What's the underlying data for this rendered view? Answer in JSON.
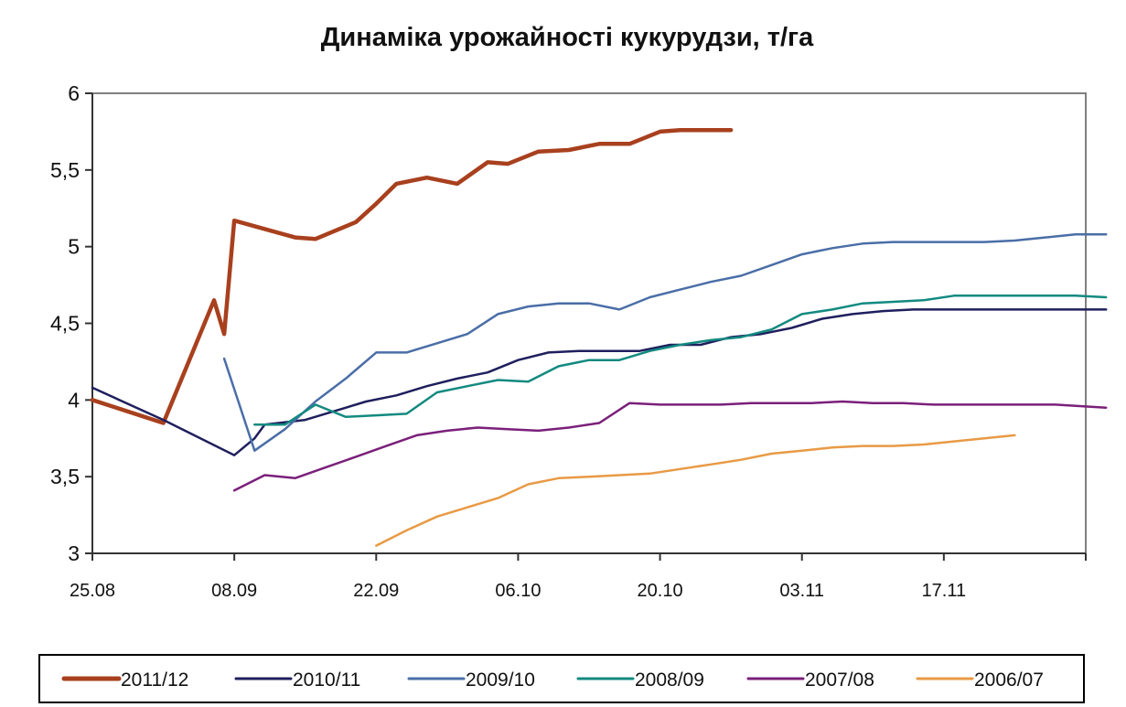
{
  "chart_data": {
    "type": "line",
    "title": "Динаміка урожайності кукурудзи, т/га",
    "xlabel": "",
    "ylabel": "",
    "x_ticks": [
      "25.08",
      "08.09",
      "22.09",
      "06.10",
      "20.10",
      "03.11",
      "17.11"
    ],
    "x_tick_days": [
      0,
      14,
      28,
      42,
      56,
      70,
      84
    ],
    "x_range_days": [
      0,
      98
    ],
    "ylim": [
      3,
      6
    ],
    "y_ticks": [
      "3",
      "3,5",
      "4",
      "4,5",
      "5",
      "5,5",
      "6"
    ],
    "y_tick_values": [
      3,
      3.5,
      4,
      4.5,
      5,
      5.5,
      6
    ],
    "grid": false,
    "legend_position": "bottom",
    "series": [
      {
        "name": "2011/12",
        "color": "#a8401e",
        "width": 4.5,
        "x": [
          "25.08",
          "01.09",
          "06.09",
          "07.09",
          "08.09",
          "14.09",
          "16.09",
          "20.09",
          "22.09",
          "24.09",
          "27.09",
          "30.09",
          "03.10",
          "05.10",
          "08.10",
          "11.10",
          "14.10",
          "17.10",
          "20.10",
          "22.10",
          "24.10",
          "27.10"
        ],
        "y": [
          4.0,
          3.85,
          4.65,
          4.43,
          5.17,
          5.06,
          5.05,
          5.16,
          5.28,
          5.41,
          5.45,
          5.41,
          5.55,
          5.54,
          5.62,
          5.63,
          5.67,
          5.67,
          5.75,
          5.76,
          5.76,
          5.76
        ]
      },
      {
        "name": "2010/11",
        "color": "#1f1f5e",
        "width": 2.5,
        "x": [
          "25.08",
          "01.09",
          "08.09",
          "10.09",
          "11.09",
          "15.09",
          "18.09",
          "21.09",
          "24.09",
          "27.09",
          "30.09",
          "03.10",
          "06.10",
          "09.10",
          "12.10",
          "15.10",
          "18.10",
          "21.10",
          "24.10",
          "27.10",
          "30.10",
          "02.11",
          "05.11",
          "08.11",
          "11.11",
          "14.11",
          "17.11",
          "20.11",
          "23.11",
          "26.11",
          "03.12"
        ],
        "y": [
          4.08,
          3.87,
          3.64,
          3.75,
          3.84,
          3.87,
          3.93,
          3.99,
          4.03,
          4.09,
          4.14,
          4.18,
          4.26,
          4.31,
          4.32,
          4.32,
          4.32,
          4.36,
          4.36,
          4.41,
          4.43,
          4.47,
          4.53,
          4.56,
          4.58,
          4.59,
          4.59,
          4.59,
          4.59,
          4.59,
          4.59
        ]
      },
      {
        "name": "2009/10",
        "color": "#4a6ea7",
        "width": 2.5,
        "x": [
          "07.09",
          "10.09",
          "13.09",
          "16.09",
          "19.09",
          "22.09",
          "25.09",
          "28.09",
          "01.10",
          "04.10",
          "07.10",
          "10.10",
          "13.10",
          "16.10",
          "19.10",
          "22.10",
          "25.10",
          "28.10",
          "31.10",
          "03.11",
          "06.11",
          "09.11",
          "12.11",
          "15.11",
          "18.11",
          "21.11",
          "24.11",
          "27.11",
          "30.11",
          "03.12"
        ],
        "y": [
          4.27,
          3.67,
          3.81,
          3.99,
          4.14,
          4.31,
          4.31,
          4.37,
          4.43,
          4.56,
          4.61,
          4.63,
          4.63,
          4.59,
          4.67,
          4.72,
          4.77,
          4.81,
          4.88,
          4.95,
          4.99,
          5.02,
          5.03,
          5.03,
          5.03,
          5.03,
          5.04,
          5.06,
          5.08,
          5.08
        ]
      },
      {
        "name": "2008/09",
        "color": "#138a80",
        "width": 2.5,
        "x": [
          "10.09",
          "13.09",
          "16.09",
          "19.09",
          "22.09",
          "25.09",
          "28.09",
          "01.10",
          "04.10",
          "07.10",
          "10.10",
          "13.10",
          "16.10",
          "19.10",
          "22.10",
          "25.10",
          "28.10",
          "31.10",
          "03.11",
          "06.11",
          "09.11",
          "12.11",
          "15.11",
          "18.11",
          "21.11",
          "24.11",
          "27.11",
          "30.11",
          "03.12"
        ],
        "y": [
          3.84,
          3.84,
          3.97,
          3.89,
          3.9,
          3.91,
          4.05,
          4.09,
          4.13,
          4.12,
          4.22,
          4.26,
          4.26,
          4.32,
          4.36,
          4.39,
          4.41,
          4.46,
          4.56,
          4.59,
          4.63,
          4.64,
          4.65,
          4.68,
          4.68,
          4.68,
          4.68,
          4.68,
          4.67
        ]
      },
      {
        "name": "2007/08",
        "color": "#7a207a",
        "width": 2.5,
        "x": [
          "08.09",
          "11.09",
          "14.09",
          "17.09",
          "20.09",
          "23.09",
          "26.09",
          "29.09",
          "02.10",
          "05.10",
          "08.10",
          "11.10",
          "14.10",
          "17.10",
          "20.10",
          "23.10",
          "26.10",
          "29.10",
          "01.11",
          "04.11",
          "07.11",
          "10.11",
          "13.11",
          "16.11",
          "19.11",
          "22.11",
          "25.11",
          "28.11",
          "03.12"
        ],
        "y": [
          3.41,
          3.51,
          3.49,
          3.56,
          3.63,
          3.7,
          3.77,
          3.8,
          3.82,
          3.81,
          3.8,
          3.82,
          3.85,
          3.98,
          3.97,
          3.97,
          3.97,
          3.98,
          3.98,
          3.98,
          3.99,
          3.98,
          3.98,
          3.97,
          3.97,
          3.97,
          3.97,
          3.97,
          3.95
        ]
      },
      {
        "name": "2006/07",
        "color": "#e89a45",
        "width": 2.5,
        "x": [
          "22.09",
          "25.09",
          "28.09",
          "01.10",
          "04.10",
          "07.10",
          "10.10",
          "13.10",
          "16.10",
          "19.10",
          "22.10",
          "25.10",
          "28.10",
          "31.10",
          "03.11",
          "06.11",
          "09.11",
          "12.11",
          "15.11",
          "18.11",
          "21.11",
          "24.11"
        ],
        "y": [
          3.05,
          3.15,
          3.24,
          3.3,
          3.36,
          3.45,
          3.49,
          3.5,
          3.51,
          3.52,
          3.55,
          3.58,
          3.61,
          3.65,
          3.67,
          3.69,
          3.7,
          3.7,
          3.71,
          3.73,
          3.75,
          3.77
        ]
      }
    ]
  }
}
